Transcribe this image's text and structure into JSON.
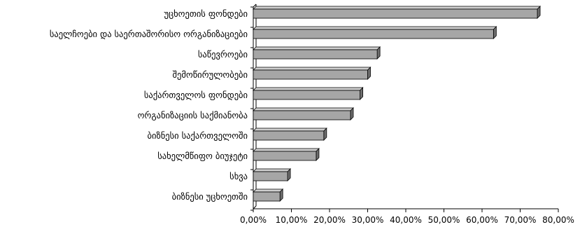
{
  "chart_data": {
    "type": "bar",
    "orientation": "horizontal",
    "style": "3d",
    "title": "",
    "xlabel": "",
    "ylabel": "",
    "categories": [
      "უცხოეთის ფონდები",
      "საელჩოები და საერთაშორისო ორგანიზაციები",
      "საწევროები",
      "შემოწირულობები",
      "საქართველოს ფონდები",
      "ორგანიზაციის საქმიანობა",
      "ბიზნესი საქართველოში",
      "სახელმწიფო ბიუჯეტი",
      "სხვა",
      "ბიზნესი უცხოეთში"
    ],
    "series": [
      {
        "values": [
          74.5,
          63.0,
          32.5,
          30.0,
          28.0,
          25.5,
          18.5,
          16.5,
          9.0,
          7.0
        ]
      }
    ],
    "xlim": [
      0,
      80
    ],
    "xticks": [
      0,
      10,
      20,
      30,
      40,
      50,
      60,
      70,
      80
    ],
    "xtick_labels": [
      "0,00%",
      "10,00%",
      "20,00%",
      "30,00%",
      "40,00%",
      "50,00%",
      "60,00%",
      "70,00%",
      "80,00%"
    ],
    "grid": false,
    "legend": "none",
    "colors": {
      "bar_front": "#a6a6a6",
      "bar_top": "#cfcfcf",
      "bar_side": "#6e6e6e",
      "axis": "#000000"
    }
  }
}
